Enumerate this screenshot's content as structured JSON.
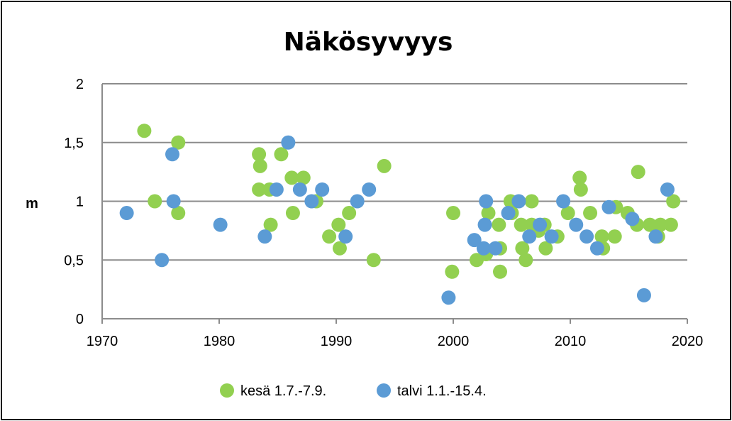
{
  "chart_data": {
    "type": "scatter",
    "title": "Näkösyvyys",
    "xlabel": "",
    "ylabel": "m",
    "xlim": [
      1970,
      2020
    ],
    "ylim": [
      0,
      2
    ],
    "x_ticks": [
      "1970",
      "1980",
      "1990",
      "2000",
      "2010",
      "2020"
    ],
    "y_ticks": [
      "0",
      "0,5",
      "1",
      "1,5",
      "2"
    ],
    "grid": "horizontal",
    "legend_position": "bottom",
    "series": [
      {
        "name": "kesä 1.7.-7.9.",
        "color": "#92d050",
        "points": [
          [
            1973.6,
            1.6
          ],
          [
            1974.5,
            1.0
          ],
          [
            1976.5,
            1.5
          ],
          [
            1976.5,
            0.9
          ],
          [
            1983.4,
            1.4
          ],
          [
            1983.5,
            1.3
          ],
          [
            1983.4,
            1.1
          ],
          [
            1984.3,
            1.1
          ],
          [
            1984.4,
            0.8
          ],
          [
            1985.3,
            1.4
          ],
          [
            1986.2,
            1.2
          ],
          [
            1986.3,
            0.9
          ],
          [
            1987.2,
            1.2
          ],
          [
            1988.3,
            1.0
          ],
          [
            1989.4,
            0.7
          ],
          [
            1990.2,
            0.8
          ],
          [
            1990.3,
            0.6
          ],
          [
            1991.1,
            0.9
          ],
          [
            1993.2,
            0.5
          ],
          [
            1994.1,
            1.3
          ],
          [
            1999.9,
            0.4
          ],
          [
            2000.0,
            0.9
          ],
          [
            2002.0,
            0.5
          ],
          [
            2002.8,
            0.55
          ],
          [
            2003.0,
            0.9
          ],
          [
            2003.9,
            0.8
          ],
          [
            2004.0,
            0.6
          ],
          [
            2004.0,
            0.4
          ],
          [
            2004.9,
            1.0
          ],
          [
            2005.0,
            0.9
          ],
          [
            2005.8,
            0.8
          ],
          [
            2005.9,
            0.6
          ],
          [
            2006.2,
            0.5
          ],
          [
            2006.7,
            1.0
          ],
          [
            2006.7,
            0.8
          ],
          [
            2007.3,
            0.75
          ],
          [
            2007.8,
            0.8
          ],
          [
            2007.9,
            0.6
          ],
          [
            2008.9,
            0.7
          ],
          [
            2009.8,
            0.9
          ],
          [
            2010.8,
            1.2
          ],
          [
            2010.9,
            1.1
          ],
          [
            2011.7,
            0.9
          ],
          [
            2012.7,
            0.7
          ],
          [
            2012.8,
            0.6
          ],
          [
            2013.8,
            0.7
          ],
          [
            2013.9,
            0.95
          ],
          [
            2014.9,
            0.9
          ],
          [
            2015.7,
            0.8
          ],
          [
            2015.8,
            1.25
          ],
          [
            2016.8,
            0.8
          ],
          [
            2017.5,
            0.7
          ],
          [
            2017.7,
            0.8
          ],
          [
            2018.6,
            0.8
          ],
          [
            2018.8,
            1.0
          ]
        ]
      },
      {
        "name": "talvi 1.1.-15.4.",
        "color": "#5b9bd5",
        "points": [
          [
            1972.1,
            0.9
          ],
          [
            1975.1,
            0.5
          ],
          [
            1976.0,
            1.4
          ],
          [
            1976.1,
            1.0
          ],
          [
            1980.1,
            0.8
          ],
          [
            1983.9,
            0.7
          ],
          [
            1984.9,
            1.1
          ],
          [
            1985.9,
            1.5
          ],
          [
            1986.9,
            1.1
          ],
          [
            1987.9,
            1.0
          ],
          [
            1988.8,
            1.1
          ],
          [
            1990.8,
            0.7
          ],
          [
            1991.8,
            1.0
          ],
          [
            1992.8,
            1.1
          ],
          [
            1999.6,
            0.18
          ],
          [
            2001.8,
            0.67
          ],
          [
            2002.6,
            0.6
          ],
          [
            2002.7,
            0.8
          ],
          [
            2002.8,
            1.0
          ],
          [
            2003.6,
            0.6
          ],
          [
            2004.7,
            0.9
          ],
          [
            2005.6,
            1.0
          ],
          [
            2006.5,
            0.7
          ],
          [
            2007.4,
            0.8
          ],
          [
            2008.4,
            0.7
          ],
          [
            2009.4,
            1.0
          ],
          [
            2010.5,
            0.8
          ],
          [
            2011.4,
            0.7
          ],
          [
            2012.3,
            0.6
          ],
          [
            2013.3,
            0.95
          ],
          [
            2015.3,
            0.85
          ],
          [
            2016.3,
            0.2
          ],
          [
            2017.3,
            0.7
          ],
          [
            2018.3,
            1.1
          ]
        ]
      }
    ]
  }
}
